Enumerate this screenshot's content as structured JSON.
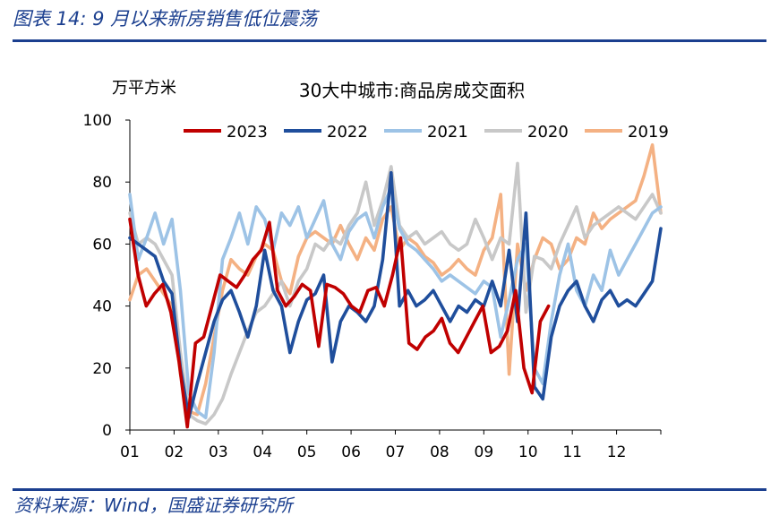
{
  "header": {
    "figure_title": "图表 14: 9 月以来新房销售低位震荡"
  },
  "footer": {
    "source": "资料来源：Wind，国盛证券研究所"
  },
  "colors": {
    "2023": "#c00000",
    "2022": "#1f4e9c",
    "2021": "#9dc3e6",
    "2020": "#c8c8c8",
    "2019": "#f4b183",
    "text": "#1b3f8f",
    "axis": "#000000"
  },
  "chart_data": {
    "type": "line",
    "title": "30大中城市:商品房成交面积",
    "ylabel": "万平方米",
    "xlabel": "",
    "ylim": [
      0,
      100
    ],
    "yticks": [
      0,
      20,
      40,
      60,
      80,
      100
    ],
    "x_tick_labels": [
      "01",
      "02",
      "03",
      "04",
      "05",
      "06",
      "07",
      "08",
      "09",
      "10",
      "11",
      "12"
    ],
    "x_unit": "week of year",
    "grid": false,
    "legend_placement": "top",
    "series": [
      {
        "name": "2023",
        "values": [
          68,
          50,
          40,
          44,
          47,
          38,
          22,
          1,
          28,
          30,
          40,
          50,
          48,
          46,
          50,
          55,
          58,
          67,
          45,
          40,
          43,
          47,
          45,
          27,
          47,
          46,
          44,
          40,
          38,
          45,
          46,
          40,
          50,
          62,
          28,
          26,
          30,
          32,
          36,
          28,
          25,
          30,
          35,
          40,
          25,
          27,
          32,
          45,
          20,
          12,
          35,
          40
        ]
      },
      {
        "name": "2022",
        "values": [
          62,
          60,
          58,
          56,
          48,
          44,
          20,
          4,
          15,
          25,
          35,
          42,
          45,
          38,
          30,
          40,
          58,
          45,
          40,
          25,
          35,
          42,
          44,
          50,
          22,
          35,
          40,
          38,
          35,
          40,
          55,
          83,
          40,
          45,
          40,
          42,
          45,
          40,
          35,
          40,
          38,
          42,
          40,
          48,
          40,
          58,
          35,
          70,
          14,
          10,
          30,
          40,
          45,
          48,
          40,
          35,
          42,
          45,
          40,
          42,
          40,
          44,
          48,
          65
        ]
      },
      {
        "name": "2021",
        "values": [
          76,
          55,
          62,
          70,
          60,
          68,
          45,
          12,
          6,
          4,
          25,
          55,
          62,
          70,
          60,
          72,
          68,
          58,
          70,
          66,
          72,
          62,
          68,
          74,
          60,
          55,
          64,
          68,
          70,
          62,
          72,
          78,
          65,
          60,
          58,
          55,
          52,
          48,
          50,
          48,
          46,
          44,
          48,
          46,
          30,
          42,
          55,
          60,
          20,
          15,
          35,
          50,
          60,
          45,
          40,
          50,
          45,
          58,
          50,
          55,
          60,
          65,
          70,
          72
        ]
      },
      {
        "name": "2020",
        "values": [
          70,
          60,
          62,
          60,
          55,
          50,
          25,
          5,
          3,
          2,
          5,
          10,
          18,
          25,
          32,
          38,
          40,
          44,
          48,
          40,
          48,
          52,
          60,
          58,
          62,
          60,
          66,
          70,
          80,
          66,
          74,
          85,
          66,
          62,
          64,
          60,
          62,
          64,
          60,
          58,
          60,
          68,
          62,
          55,
          62,
          60,
          86,
          38,
          56,
          55,
          52,
          60,
          66,
          72,
          62,
          66,
          68,
          70,
          72,
          70,
          68,
          72,
          76,
          70
        ]
      },
      {
        "name": "2019",
        "values": [
          42,
          50,
          52,
          48,
          44,
          40,
          18,
          6,
          5,
          15,
          30,
          45,
          55,
          52,
          50,
          56,
          60,
          58,
          48,
          44,
          56,
          62,
          64,
          62,
          60,
          66,
          60,
          55,
          62,
          58,
          68,
          72,
          58,
          62,
          60,
          56,
          54,
          50,
          52,
          55,
          52,
          50,
          58,
          62,
          76,
          18,
          60,
          45,
          55,
          62,
          60,
          52,
          55,
          62,
          60,
          70,
          65,
          68,
          70,
          72,
          74,
          82,
          92,
          70
        ]
      }
    ]
  }
}
